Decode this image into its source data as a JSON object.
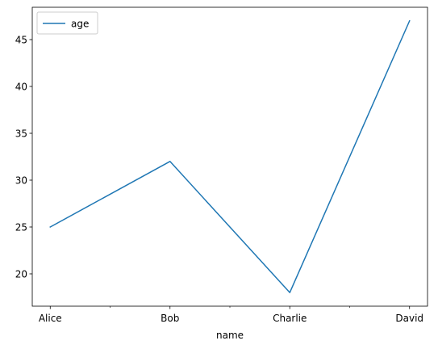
{
  "chart_data": {
    "type": "line",
    "categories": [
      "Alice",
      "Bob",
      "Charlie",
      "David"
    ],
    "series": [
      {
        "name": "age",
        "values": [
          25,
          32,
          18,
          47
        ],
        "color": "#1f77b4"
      }
    ],
    "xlabel": "name",
    "ylabel": "",
    "ylim": [
      16.55,
      48.45
    ],
    "yticks": [
      20,
      25,
      30,
      35,
      40,
      45
    ],
    "minor_xticks": [
      0.5,
      1.5,
      2.5
    ],
    "legend": {
      "position": "top-left",
      "labels": [
        "age"
      ]
    },
    "grid": false
  }
}
